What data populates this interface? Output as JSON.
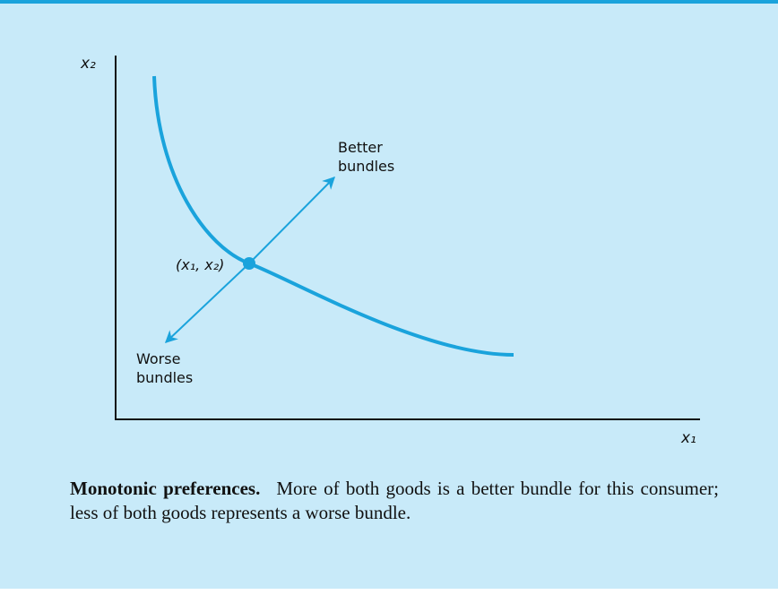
{
  "figure": {
    "axes": {
      "y_label": "x₂",
      "x_label": "x₁"
    },
    "point_label": "(x₁, x₂)",
    "better_label": [
      "Better",
      "bundles"
    ],
    "worse_label": [
      "Worse",
      "bundles"
    ]
  },
  "caption": {
    "title": "Monotonic preferences.",
    "text": "More of both goods is a better bundle for this consumer; less of both goods represents a worse bundle."
  }
}
